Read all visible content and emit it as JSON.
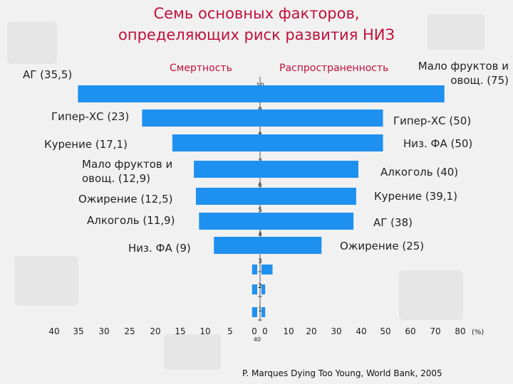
{
  "title_line1": "Семь основных факторов,",
  "title_line2": "определяющих риск развития НИЗ",
  "legend_left": "Смертность",
  "legend_right": "Распространенность",
  "source": "P. Marques Dying Too Young, World Bank,  2005",
  "colors": {
    "bar": "#1e90f0",
    "title": "#c0103a"
  },
  "chart_data": {
    "type": "bar",
    "orientation": "horizontal",
    "left_axis_ticks": [
      "40",
      "35",
      "30",
      "25",
      "20",
      "15",
      "10",
      "5",
      "0"
    ],
    "right_axis_ticks": [
      "0",
      "10",
      "20",
      "30",
      "40",
      "50",
      "60",
      "70",
      "80"
    ],
    "right_axis_unit": "(%)",
    "center_axis_ticks": [
      "10",
      "9",
      "8",
      "7",
      "6",
      "5",
      "4",
      "3",
      "2",
      "1"
    ],
    "center_axis_extra": "40",
    "series": [
      {
        "name": "Смертность",
        "side": "left",
        "labels": [
          "АГ (35,5)",
          "Гипер-ХС (23)",
          "Курение (17,1)",
          "Мало фруктов и овощ.  (12,9)",
          "Ожирение (12,5)",
          "Алкоголь (11,9)",
          "Низ. ФА (9)"
        ],
        "values": [
          35.5,
          23,
          17.1,
          12.9,
          12.5,
          11.9,
          9
        ]
      },
      {
        "name": "Распространенность",
        "side": "right",
        "labels": [
          "Мало фруктов и овощ. (75)",
          "Гипер-ХС (50)",
          "Низ. ФА (50)",
          "Алкоголь (40)",
          "Курение (39,1)",
          "АГ (38)",
          "Ожирение (25)"
        ],
        "values": [
          75,
          50,
          50,
          40,
          39.1,
          38,
          25
        ]
      }
    ],
    "extra_small_bars_left": [
      0.5,
      0.5,
      0.5
    ],
    "extra_small_bars_right": [
      1.5,
      0.5,
      0.5
    ]
  }
}
